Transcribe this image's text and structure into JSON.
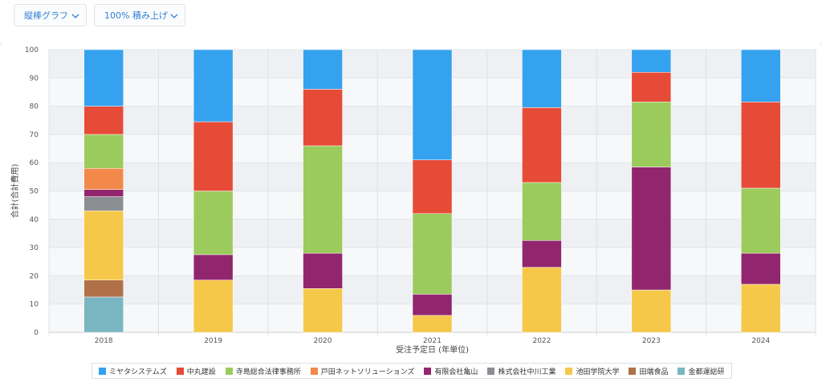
{
  "toolbar": {
    "chart_type_label": "縦棒グラフ",
    "mode_label": "100% 積み上げ"
  },
  "chart_data": {
    "type": "bar",
    "stacked": "percent",
    "categories": [
      "2018",
      "2019",
      "2020",
      "2021",
      "2022",
      "2023",
      "2024"
    ],
    "xlabel": "受注予定日 (年単位)",
    "ylabel": "合計(合計費用)",
    "ylim": [
      0,
      100
    ],
    "yticks": [
      0,
      10,
      20,
      30,
      40,
      50,
      60,
      70,
      80,
      90,
      100
    ],
    "legend_position": "bottom",
    "series": [
      {
        "name": "金都運総研",
        "color": "#7ab6c2",
        "values": [
          12.5,
          0,
          0,
          0,
          0,
          0,
          0
        ]
      },
      {
        "name": "田端食品",
        "color": "#b07048",
        "values": [
          6,
          0,
          0,
          0,
          0,
          0,
          0
        ]
      },
      {
        "name": "池田学院大学",
        "color": "#f5c84a",
        "values": [
          24.5,
          18.5,
          15.5,
          6,
          23,
          15,
          17
        ]
      },
      {
        "name": "株式会社中川工業",
        "color": "#8a8d91",
        "values": [
          5,
          0,
          0,
          0,
          0,
          0,
          0
        ]
      },
      {
        "name": "有限会社亀山",
        "color": "#92266e",
        "values": [
          2.5,
          9,
          12.5,
          7.5,
          9.5,
          43.5,
          11
        ]
      },
      {
        "name": "戸田ネットソリューションズ",
        "color": "#f2894a",
        "values": [
          7.5,
          0,
          0,
          0,
          0,
          0,
          0
        ]
      },
      {
        "name": "寺島総合法律事務所",
        "color": "#9bcb5c",
        "values": [
          12,
          22.5,
          38,
          28.5,
          20.5,
          23,
          23
        ]
      },
      {
        "name": "中丸建設",
        "color": "#e64b38",
        "values": [
          10,
          24.5,
          20,
          19,
          26.5,
          10.5,
          30.5
        ]
      },
      {
        "name": "ミヤタシステムズ",
        "color": "#35a2f0",
        "values": [
          20,
          25.5,
          14,
          39,
          20.5,
          8,
          18.5
        ]
      }
    ],
    "legend_order": [
      "ミヤタシステムズ",
      "中丸建設",
      "寺島総合法律事務所",
      "戸田ネットソリューションズ",
      "有限会社亀山",
      "株式会社中川工業",
      "池田学院大学",
      "田端食品",
      "金都運総研"
    ]
  }
}
